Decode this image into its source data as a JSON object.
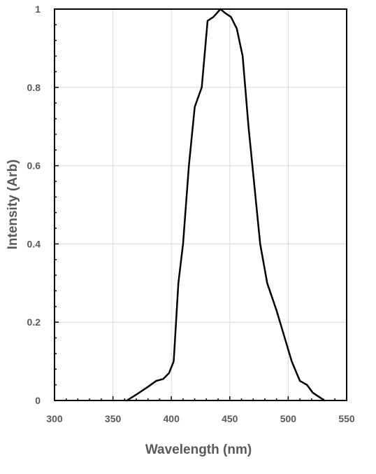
{
  "chart_data": {
    "type": "line",
    "title": "",
    "xlabel": "Wavelength (nm)",
    "ylabel": "Intensity (Arb)",
    "xlim": [
      300,
      550
    ],
    "ylim": [
      0,
      1
    ],
    "x_ticks": [
      300,
      350,
      400,
      450,
      500,
      550
    ],
    "x_tick_labels": [
      "300",
      "350",
      "400",
      "450",
      "500",
      "550"
    ],
    "y_ticks": [
      0,
      0.2,
      0.4,
      0.6,
      0.8,
      1
    ],
    "y_tick_labels": [
      "0",
      "0.2",
      "0.4",
      "0.6",
      "0.8",
      "1"
    ],
    "grid": true,
    "legend": "none",
    "series": [
      {
        "color": "#000000",
        "x": [
          362,
          370,
          380,
          387,
          393,
          398,
          402,
          406,
          410,
          415,
          420,
          426,
          431,
          436,
          442,
          446,
          451,
          456,
          461,
          466,
          471,
          476,
          482,
          490,
          497,
          503,
          510,
          516,
          521,
          526,
          531
        ],
        "y": [
          0,
          0.015,
          0.035,
          0.05,
          0.055,
          0.07,
          0.1,
          0.3,
          0.4,
          0.6,
          0.75,
          0.8,
          0.97,
          0.98,
          1.0,
          0.99,
          0.98,
          0.95,
          0.88,
          0.7,
          0.55,
          0.4,
          0.3,
          0.23,
          0.16,
          0.1,
          0.05,
          0.04,
          0.02,
          0.01,
          0
        ]
      }
    ]
  }
}
